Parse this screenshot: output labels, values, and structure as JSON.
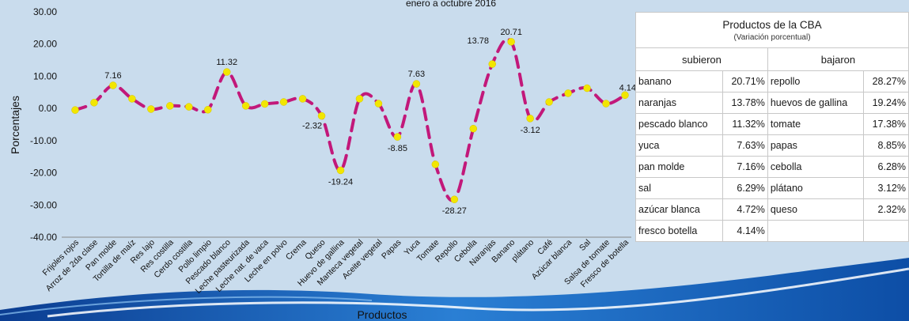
{
  "chart_data": {
    "type": "line",
    "title": "enero a octubre 2016",
    "xlabel": "Productos",
    "ylabel": "Porcentajes",
    "ylim": [
      -40,
      30
    ],
    "yticks": [
      "30.00",
      "20.00",
      "10.00",
      "0.00",
      "-10.00",
      "-20.00",
      "-30.00",
      "-40.00"
    ],
    "color": "#c2187a",
    "categories": [
      "Frijoles rojos",
      "Arroz de 2da clase",
      "Pan molde",
      "Tortilla de maíz",
      "Res lajo",
      "Res costilla",
      "Cerdo costilla",
      "Pollo limpio",
      "Pescado blanco",
      "Leche pasteurizada",
      "Leche nat. de vaca",
      "Leche en polvo",
      "Crema",
      "Queso",
      "Huevo de gallina",
      "Manteca vegetal",
      "Aceite vegetal",
      "Papas",
      "Yuca",
      "Tomate",
      "Repollo",
      "Cebolla",
      "Naranjas",
      "Banano",
      "plátano",
      "Café",
      "Azúcar blanca",
      "Sal",
      "Salsa de tomate",
      "Fresco de botella"
    ],
    "values": [
      -0.5,
      1.8,
      7.16,
      3.0,
      -0.2,
      0.8,
      0.5,
      -0.4,
      11.32,
      0.8,
      1.4,
      2.0,
      3.0,
      -2.32,
      -19.24,
      3.0,
      1.5,
      -8.85,
      7.63,
      -17.38,
      -28.27,
      -6.28,
      13.78,
      20.71,
      -3.12,
      2.0,
      4.72,
      6.29,
      1.5,
      4.14
    ],
    "data_labels": [
      {
        "index": 2,
        "text": "7.16"
      },
      {
        "index": 8,
        "text": "11.32"
      },
      {
        "index": 13,
        "text": "-2.32"
      },
      {
        "index": 14,
        "text": "-19.24"
      },
      {
        "index": 17,
        "text": "-8.85"
      },
      {
        "index": 18,
        "text": "7.63"
      },
      {
        "index": 20,
        "text": "-28.27"
      },
      {
        "index": 22,
        "text": "13.78"
      },
      {
        "index": 23,
        "text": "20.71"
      },
      {
        "index": 24,
        "text": "-3.12"
      },
      {
        "index": 29,
        "text": "4.14"
      }
    ]
  },
  "table": {
    "title": "Productos de la CBA",
    "subtitle": "(Variación porcentual)",
    "col_up": "subieron",
    "col_down": "bajaron",
    "rows": [
      {
        "up_name": "banano",
        "up_val": "20.71%",
        "down_name": "repollo",
        "down_val": "28.27%"
      },
      {
        "up_name": "naranjas",
        "up_val": "13.78%",
        "down_name": "huevos de gallina",
        "down_val": "19.24%"
      },
      {
        "up_name": "pescado blanco",
        "up_val": "11.32%",
        "down_name": "tomate",
        "down_val": "17.38%"
      },
      {
        "up_name": "yuca",
        "up_val": "7.63%",
        "down_name": "papas",
        "down_val": "8.85%"
      },
      {
        "up_name": "pan molde",
        "up_val": "7.16%",
        "down_name": "cebolla",
        "down_val": "6.28%"
      },
      {
        "up_name": "sal",
        "up_val": "6.29%",
        "down_name": "plátano",
        "down_val": "3.12%"
      },
      {
        "up_name": "azúcar blanca",
        "up_val": "4.72%",
        "down_name": "queso",
        "down_val": "2.32%"
      },
      {
        "up_name": "fresco botella",
        "up_val": "4.14%",
        "down_name": "",
        "down_val": ""
      }
    ]
  }
}
